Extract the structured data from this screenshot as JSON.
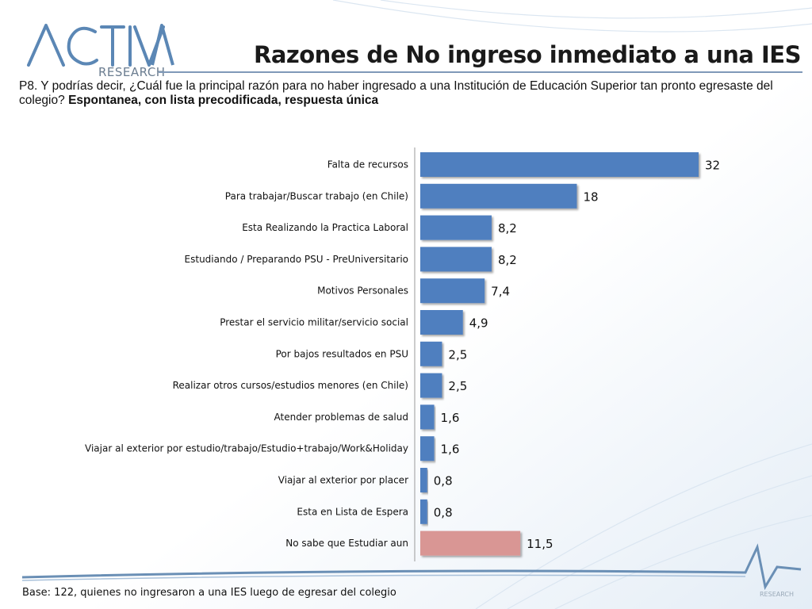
{
  "logo": {
    "brand": "ACTIVA",
    "sub": "RESEARCH"
  },
  "header": {
    "title": "Razones de No ingreso inmediato a una IES",
    "question": "P8. Y podrías decir, ¿Cuál fue la principal razón para no haber ingresado a una Institución de Educación Superior tan pronto egresaste del colegio?",
    "question_bold": "Espontanea, con lista precodificada, respuesta única"
  },
  "footer": {
    "base": "Base: 122, quienes no ingresaron a una IES luego de egresar del colegio",
    "watermark": "RESEARCH"
  },
  "colors": {
    "primary": "#4f7fbf",
    "highlight": "#d99694",
    "accent": "#5b7fa6"
  },
  "chart_data": {
    "type": "bar",
    "orientation": "horizontal",
    "categories": [
      "Falta de recursos",
      "Para trabajar/Buscar trabajo (en Chile)",
      "Esta Realizando la Practica Laboral",
      "Estudiando / Preparando PSU - PreUniversitario",
      "Motivos Personales",
      "Prestar el servicio militar/servicio social",
      "Por bajos resultados en PSU",
      "Realizar otros cursos/estudios menores (en Chile)",
      "Atender problemas de salud",
      "Viajar al exterior por estudio/trabajo/Estudio+trabajo/Work&Holiday",
      "Viajar al exterior por placer",
      "Esta en Lista de Espera",
      "No sabe que Estudiar aun"
    ],
    "values": [
      32,
      18,
      8.2,
      8.2,
      7.4,
      4.9,
      2.5,
      2.5,
      1.6,
      1.6,
      0.8,
      0.8,
      11.5
    ],
    "value_labels": [
      "32",
      "18",
      "8,2",
      "8,2",
      "7,4",
      "4,9",
      "2,5",
      "2,5",
      "1,6",
      "1,6",
      "0,8",
      "0,8",
      "11,5"
    ],
    "highlight_index": 12,
    "xlim": [
      0,
      32
    ],
    "grid": false,
    "legend": "none"
  }
}
